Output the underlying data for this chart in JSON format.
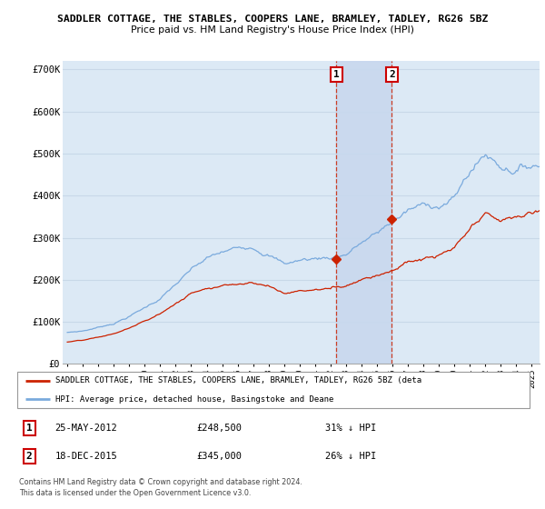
{
  "title1": "SADDLER COTTAGE, THE STABLES, COOPERS LANE, BRAMLEY, TADLEY, RG26 5BZ",
  "title2": "Price paid vs. HM Land Registry's House Price Index (HPI)",
  "background_color": "#ffffff",
  "plot_bg_color": "#dce9f5",
  "grid_color": "#c8d8e8",
  "hpi_color": "#7aaadd",
  "price_color": "#cc2200",
  "shade_color": "#c8d8ee",
  "purchase1_year_f": 2012.38,
  "purchase1_price": 248500,
  "purchase2_year_f": 2015.96,
  "purchase2_price": 345000,
  "legend_text1": "SADDLER COTTAGE, THE STABLES, COOPERS LANE, BRAMLEY, TADLEY, RG26 5BZ (deta",
  "legend_text2": "HPI: Average price, detached house, Basingstoke and Deane",
  "info1_label": "1",
  "info1_date": "25-MAY-2012",
  "info1_price": "£248,500",
  "info1_hpi": "31% ↓ HPI",
  "info2_label": "2",
  "info2_date": "18-DEC-2015",
  "info2_price": "£345,000",
  "info2_hpi": "26% ↓ HPI",
  "footnote1": "Contains HM Land Registry data © Crown copyright and database right 2024.",
  "footnote2": "This data is licensed under the Open Government Licence v3.0.",
  "ylim_max": 720000,
  "ylim_min": 0,
  "xlim_min": 1995.0,
  "xlim_max": 2025.5
}
